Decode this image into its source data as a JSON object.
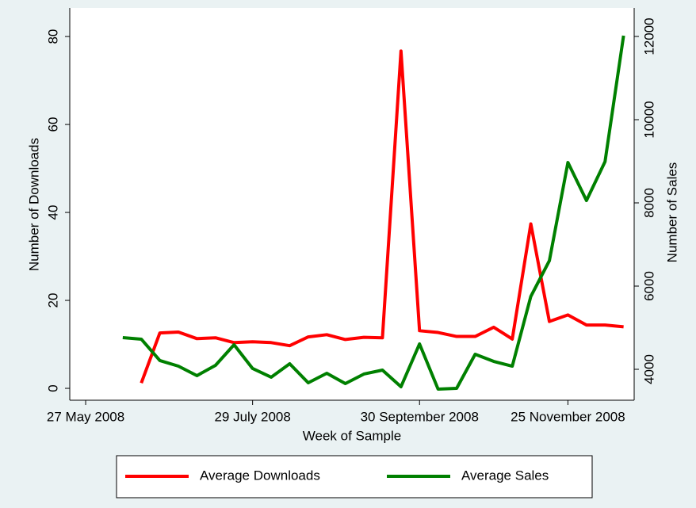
{
  "chart_data": {
    "type": "line",
    "x_label": "Week of Sample",
    "y_label": "Number of Downloads",
    "y2_label": "Number of Sales",
    "x": [
      "2008-06-10",
      "2008-06-17",
      "2008-06-24",
      "2008-07-01",
      "2008-07-08",
      "2008-07-15",
      "2008-07-22",
      "2008-07-29",
      "2008-08-05",
      "2008-08-12",
      "2008-08-19",
      "2008-08-26",
      "2008-09-02",
      "2008-09-09",
      "2008-09-16",
      "2008-09-23",
      "2008-09-30",
      "2008-10-07",
      "2008-10-14",
      "2008-10-21",
      "2008-10-28",
      "2008-11-04",
      "2008-11-11",
      "2008-11-18",
      "2008-11-25",
      "2008-12-02",
      "2008-12-09",
      "2008-12-16"
    ],
    "series": [
      {
        "name": "Average Downloads",
        "color": "#ff0000",
        "axis": "y",
        "values": [
          null,
          1.2,
          12.6,
          12.8,
          11.3,
          11.5,
          10.4,
          10.6,
          10.4,
          9.7,
          11.7,
          12.2,
          11.1,
          11.6,
          11.5,
          76.7,
          13.1,
          12.7,
          11.8,
          11.8,
          13.9,
          11.2,
          37.4,
          15.2,
          16.7,
          14.4,
          14.4,
          14.0
        ]
      },
      {
        "name": "Average Sales",
        "color": "#008000",
        "axis": "y2",
        "values": [
          4762,
          4724,
          4210,
          4076,
          3848,
          4095,
          4590,
          4019,
          3810,
          4133,
          3676,
          3905,
          3657,
          3886,
          3981,
          3581,
          4610,
          3524,
          3543,
          4362,
          4190,
          4076,
          5752,
          6610,
          8971,
          8057,
          8990,
          12019
        ]
      }
    ],
    "xlim": [
      "2008-05-21",
      "2008-12-20"
    ],
    "xticks": [
      {
        "value": "2008-05-27",
        "label": "27 May 2008"
      },
      {
        "value": "2008-07-29",
        "label": "29 July 2008"
      },
      {
        "value": "2008-09-30",
        "label": "30 September 2008"
      },
      {
        "value": "2008-11-25",
        "label": "25 November 2008"
      }
    ],
    "ylim": [
      -2.7,
      86.5
    ],
    "yticks": [
      0,
      20,
      40,
      60,
      80
    ],
    "y2lim": [
      3257,
      12686
    ],
    "y2ticks": [
      4000,
      6000,
      8000,
      10000,
      12000
    ],
    "legend": "bottom"
  }
}
